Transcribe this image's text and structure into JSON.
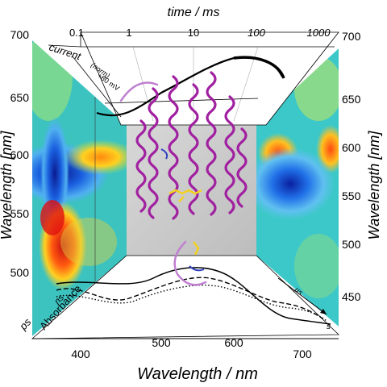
{
  "top_axis": {
    "title": "time / ms",
    "ticks": [
      "0.1",
      "1",
      "10",
      "100",
      "1000"
    ],
    "current_label": "current",
    "current_unit": "(norm)",
    "voltage_label": "+80 mV"
  },
  "left_axis": {
    "title": "Wavelength [nm]",
    "ticks": [
      "700",
      "650",
      "600",
      "550",
      "500"
    ]
  },
  "right_axis": {
    "title": "Wavelength [nm]",
    "ticks": [
      "700",
      "650",
      "600",
      "550",
      "500",
      "450"
    ]
  },
  "bottom_axis": {
    "title": "Wavelength / nm",
    "ticks": [
      "400",
      "500",
      "600",
      "700"
    ]
  },
  "floor": {
    "absorbance_label": "Absorbance",
    "ps_label": "ps",
    "ns_label": "ns",
    "us_label": "µs",
    "s_label": "s"
  },
  "colors": {
    "protein_helix": "#a020a0",
    "chromophore": "#f2d020",
    "map_background": "#35c0c8"
  }
}
